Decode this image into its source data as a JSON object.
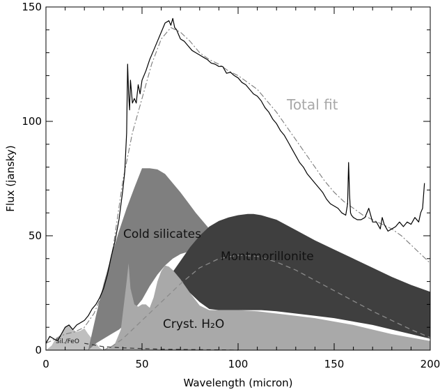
{
  "chart_data": {
    "type": "area",
    "xlabel": "Wavelength (micron)",
    "ylabel": "Flux (jansky)",
    "xlim": [
      0,
      200
    ],
    "ylim": [
      0,
      150
    ],
    "xticks": [
      0,
      50,
      100,
      150,
      200
    ],
    "yticks": [
      0,
      50,
      100,
      150
    ],
    "grid": false,
    "legend": "none",
    "annotations": {
      "total_fit": "Total fit",
      "cold_silicates": "Cold silicates",
      "montmorillonite": "Montmorillonite",
      "cryst_h2o": "Cryst. H₂O",
      "sil_feo": "Sil./FeO"
    },
    "colors": {
      "cold_silicates": "#7f7f7f",
      "montmorillonite": "#3f3f3f",
      "cryst_h2o": "#a9a9a9",
      "sil_feo": "#bfbfbf",
      "observed": "#000000",
      "fit": "#7a7a7a"
    },
    "series": [
      {
        "id": "cold_silicates",
        "x": [
          22,
          26,
          30,
          34,
          38,
          42,
          46,
          50,
          54,
          58,
          62,
          66,
          70,
          74,
          78,
          82,
          86,
          90,
          94,
          98,
          100
        ],
        "y": [
          0,
          15,
          29,
          41,
          52,
          62,
          71,
          79.5,
          79.5,
          79,
          77,
          73,
          69,
          64.5,
          60,
          56,
          52,
          48.5,
          45,
          42,
          41
        ],
        "lower": [
          0,
          3,
          5,
          7,
          9,
          12,
          18,
          22,
          28,
          33,
          37,
          40,
          42,
          43,
          44,
          45,
          45,
          45,
          45,
          45,
          45
        ]
      },
      {
        "id": "montmorillonite",
        "x": [
          60,
          65,
          70,
          75,
          80,
          85,
          90,
          95,
          100,
          105,
          108,
          112,
          120,
          130,
          140,
          150,
          160,
          170,
          180,
          190,
          200
        ],
        "y": [
          28,
          33,
          39,
          45,
          50,
          54,
          56.5,
          58,
          59,
          59.5,
          59.5,
          59,
          57,
          52.5,
          48,
          44,
          40,
          36,
          32,
          28.5,
          25.5
        ],
        "lower": [
          28,
          29,
          28,
          25,
          21,
          18,
          17.5,
          17.5,
          17.5,
          17.5,
          17.5,
          17.5,
          17,
          16,
          15,
          14,
          12.5,
          11,
          9,
          7,
          5
        ]
      },
      {
        "id": "cryst_h2o",
        "x": [
          30,
          33,
          36,
          39,
          42,
          43,
          44,
          46,
          48,
          50,
          52,
          54,
          56,
          58,
          60,
          62,
          64,
          66,
          70,
          75,
          80,
          85,
          90,
          100,
          110,
          120,
          130,
          140,
          150,
          160,
          170,
          180,
          190,
          200
        ],
        "y": [
          0,
          1,
          3,
          9,
          30,
          38,
          27,
          20,
          19,
          20,
          20,
          18.5,
          23,
          30,
          34.5,
          37,
          36.5,
          35,
          31,
          25,
          19.5,
          17.5,
          17.5,
          17.5,
          17,
          16,
          15,
          14,
          12.5,
          11,
          9,
          7,
          5.5,
          4
        ]
      },
      {
        "id": "sil_feo",
        "x": [
          0,
          3,
          5,
          8,
          10,
          12,
          14,
          16,
          18,
          20,
          22,
          24,
          26,
          28,
          30
        ],
        "y": [
          0,
          2,
          5,
          7,
          10,
          11,
          9,
          8,
          8.5,
          9.5,
          7,
          5,
          3,
          1,
          0
        ]
      },
      {
        "id": "total_fit",
        "style": "dash-dot",
        "x": [
          0,
          5,
          10,
          15,
          20,
          25,
          30,
          35,
          40,
          45,
          50,
          55,
          60,
          65,
          70,
          75,
          80,
          85,
          90,
          95,
          100,
          105,
          110,
          115,
          120,
          125,
          130,
          135,
          140,
          145,
          150,
          155,
          160,
          165,
          170,
          175,
          180,
          185,
          190,
          195,
          200
        ],
        "y": [
          3,
          5,
          7,
          8,
          10,
          16,
          26,
          45,
          74,
          95,
          110,
          125,
          136,
          141,
          139,
          135,
          130,
          127,
          125,
          122,
          120,
          117,
          114,
          109,
          104,
          98,
          92,
          86,
          80,
          74,
          69,
          65,
          62,
          59,
          57,
          55,
          53,
          50,
          46,
          42,
          38
        ]
      },
      {
        "id": "dashed_component",
        "style": "dashed",
        "x": [
          30,
          35,
          40,
          45,
          50,
          55,
          60,
          70,
          80,
          90,
          100,
          110,
          120,
          130,
          140,
          150,
          160,
          170,
          180,
          190,
          200
        ],
        "y": [
          0,
          2,
          5,
          9,
          13,
          17,
          21,
          29,
          36,
          40,
          41.5,
          41,
          38.5,
          35,
          30.5,
          26,
          21.5,
          17,
          13,
          9,
          5.5
        ]
      },
      {
        "id": "dashed_small",
        "style": "dashed",
        "x": [
          20,
          30,
          40,
          50,
          60,
          80,
          100
        ],
        "y": [
          3,
          1.5,
          1,
          0.7,
          0.4,
          0.2,
          0
        ]
      },
      {
        "id": "observed",
        "style": "solid",
        "x": [
          0,
          2,
          4,
          6,
          8,
          10,
          12,
          14,
          16,
          18,
          20,
          22,
          24,
          26,
          28,
          30,
          32,
          34,
          36,
          38,
          40,
          41,
          42,
          42.5,
          43,
          43.5,
          44,
          45,
          46,
          47,
          48,
          49,
          50,
          52,
          54,
          56,
          58,
          60,
          62,
          64,
          65,
          66,
          67,
          68,
          69,
          70,
          72,
          74,
          76,
          78,
          80,
          82,
          84,
          86,
          88,
          90,
          92,
          94,
          96,
          98,
          100,
          102,
          104,
          106,
          108,
          110,
          112,
          114,
          116,
          118,
          120,
          122,
          124,
          126,
          128,
          130,
          132,
          134,
          136,
          138,
          140,
          142,
          144,
          146,
          148,
          150,
          152,
          154,
          156,
          157,
          157.5,
          158,
          158.5,
          159,
          160,
          162,
          164,
          166,
          168,
          170,
          172,
          174,
          175,
          176,
          178,
          180,
          182,
          184,
          186,
          188,
          190,
          192,
          194,
          195,
          196,
          197
        ],
        "y": [
          3,
          6,
          5,
          4,
          7,
          10,
          11,
          9,
          11,
          12,
          13,
          15,
          18,
          20,
          23,
          27,
          33,
          41,
          48,
          57,
          70,
          78,
          95,
          125,
          112,
          105,
          118,
          108,
          110,
          108,
          116,
          112,
          118,
          122,
          127,
          131,
          135,
          139,
          143,
          144,
          142,
          145,
          141,
          140,
          138,
          136,
          135,
          133,
          131,
          130,
          129,
          128,
          127,
          125.5,
          125,
          124,
          124,
          121,
          121.5,
          120,
          119,
          117,
          116,
          114,
          112,
          111,
          109,
          106,
          104,
          101,
          99,
          96,
          94,
          91,
          88,
          85,
          82,
          80,
          77,
          75,
          73,
          71,
          69,
          66,
          64,
          63,
          62,
          60,
          59,
          64,
          82,
          68,
          60,
          59,
          58,
          57,
          57,
          58,
          62,
          56,
          56,
          53,
          58,
          55,
          52,
          53,
          54,
          56,
          54,
          56,
          55,
          58,
          56,
          60,
          62,
          73
        ]
      }
    ]
  }
}
